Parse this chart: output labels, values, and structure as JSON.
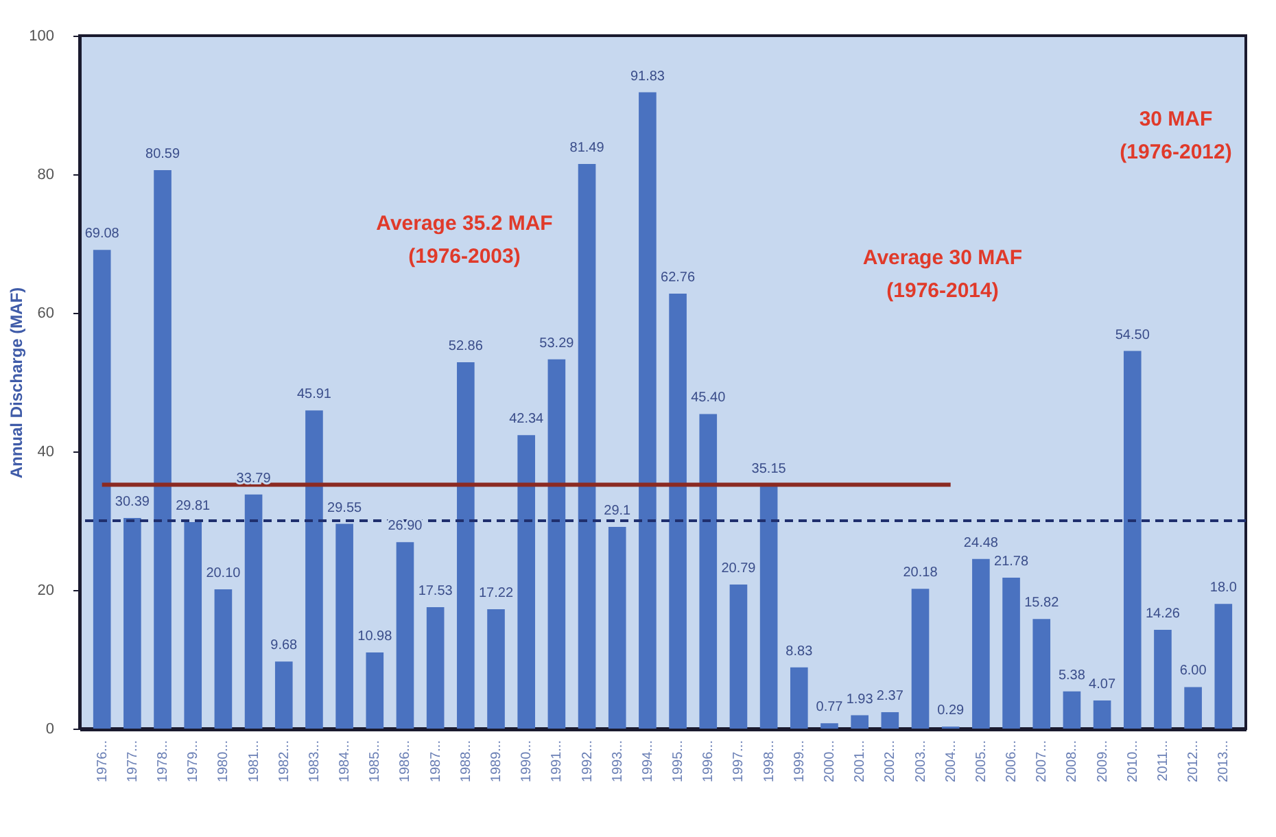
{
  "chart_data": {
    "type": "bar",
    "ylabel": "Annual Discharge  (MAF)",
    "categories": [
      "1976...",
      "1977...",
      "1978...",
      "1979...",
      "1980...",
      "1981...",
      "1982...",
      "1983...",
      "1984...",
      "1985...",
      "1986...",
      "1987...",
      "1988...",
      "1989...",
      "1990...",
      "1991...",
      "1992...",
      "1993...",
      "1994...",
      "1995...",
      "1996...",
      "1997...",
      "1998...",
      "1999...",
      "2000...",
      "2001...",
      "2002...",
      "2003...",
      "2004...",
      "2005...",
      "2006...",
      "2007...",
      "2008...",
      "2009...",
      "2010...",
      "2011...",
      "2012...",
      "2013..."
    ],
    "series": [
      {
        "color": "#4a72c0",
        "values": [
          69.08,
          30.39,
          80.59,
          29.81,
          20.1,
          33.79,
          9.68,
          45.91,
          29.55,
          10.98,
          26.9,
          17.53,
          52.86,
          17.22,
          42.34,
          53.29,
          81.49,
          29.1,
          91.83,
          62.76,
          45.4,
          20.79,
          35.15,
          8.83,
          0.77,
          1.93,
          2.37,
          20.18,
          0.29,
          24.48,
          21.78,
          15.82,
          5.38,
          4.07,
          54.5,
          14.26,
          6.0,
          18.0
        ],
        "value_labels": [
          "69.08",
          "30.39",
          "80.59",
          "29.81",
          "20.10",
          "33.79",
          "9.68",
          "45.91",
          "29.55",
          "10.98",
          "26.90",
          "17.53",
          "52.86",
          "17.22",
          "42.34",
          "53.29",
          "81.49",
          "29.1",
          "91.83",
          "62.76",
          "45.40",
          "20.79",
          "35.15",
          "8.83",
          "0.77",
          "1.93",
          "2.37",
          "20.18",
          "0.29",
          "24.48",
          "21.78",
          "15.82",
          "5.38",
          "4.07",
          "54.50",
          "14.26",
          "6.00",
          "18.0"
        ]
      },
      {
        "type": "line",
        "color": "#8b2a22",
        "values": [
          35.2,
          35.2,
          35.2,
          35.2,
          35.2,
          35.2,
          35.2,
          35.2,
          35.2,
          35.2,
          35.2,
          35.2,
          35.2,
          35.2,
          35.2,
          35.2,
          35.2,
          35.2,
          35.2,
          35.2,
          35.2,
          35.2,
          35.2,
          35.2,
          35.2,
          35.2,
          35.2,
          35.2,
          35.2,
          null,
          null,
          null,
          null,
          null,
          null,
          null,
          null,
          null
        ]
      }
    ],
    "ref_lines": [
      {
        "axis": "y",
        "value": 30,
        "color": "#1f2f6e",
        "line_style": "dashed"
      }
    ],
    "annotations": [
      "Average 35.2 MAF\n(1976-2003)",
      "Average  30 MAF\n(1976-2014)",
      "30 MAF\n(1976-2012)"
    ],
    "ylim": [
      0,
      100
    ],
    "yticks": [
      0,
      20,
      40,
      60,
      80,
      100
    ],
    "grid": false
  }
}
